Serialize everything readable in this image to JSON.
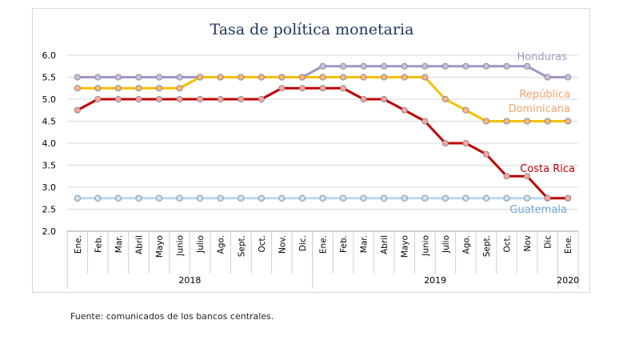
{
  "chart_data": {
    "type": "line",
    "title": "Tasa de política monetaria",
    "xlabel": "",
    "ylabel": "",
    "ylim": [
      2.0,
      6.0
    ],
    "yticks": [
      "6.0",
      "5.5",
      "5.0",
      "4.5",
      "4.0",
      "3.5",
      "3.0",
      "2.5",
      "2.0"
    ],
    "grid": true,
    "categories": [
      "Ene.",
      "Feb.",
      "Mar.",
      "Abril",
      "Mayo",
      "Junio",
      "Julio",
      "Ago.",
      "Sept.",
      "Oct.",
      "Nov.",
      "Dic.",
      "Ene.",
      "Feb.",
      "Mar.",
      "Abril",
      "Mayo",
      "Junio",
      "Julio",
      "Ago.",
      "Sept.",
      "Oct.",
      "Nov",
      "Dic",
      "Ene."
    ],
    "year_groups": [
      {
        "label": "2018",
        "start": 0,
        "count": 12
      },
      {
        "label": "2019",
        "start": 12,
        "count": 12
      },
      {
        "label": "2020",
        "start": 24,
        "count": 1
      }
    ],
    "series": [
      {
        "name": "Honduras",
        "label_lines": [
          "Honduras"
        ],
        "color": "#a593c6",
        "marker_fill": "#c9bedf",
        "values": [
          5.5,
          5.5,
          5.5,
          5.5,
          5.5,
          5.5,
          5.5,
          5.5,
          5.5,
          5.5,
          5.5,
          5.5,
          5.75,
          5.75,
          5.75,
          5.75,
          5.75,
          5.75,
          5.75,
          5.75,
          5.75,
          5.75,
          5.75,
          5.5,
          5.5
        ]
      },
      {
        "name": "República Dominicana",
        "label_lines": [
          "República",
          "Dominicana"
        ],
        "color": "#f5c000",
        "marker_fill": "#f7b58a",
        "label_color": "#f2a36b",
        "values": [
          5.25,
          5.25,
          5.25,
          5.25,
          5.25,
          5.25,
          5.5,
          5.5,
          5.5,
          5.5,
          5.5,
          5.5,
          5.5,
          5.5,
          5.5,
          5.5,
          5.5,
          5.5,
          5.0,
          4.75,
          4.5,
          4.5,
          4.5,
          4.5,
          4.5
        ]
      },
      {
        "name": "Costa Rica",
        "label_lines": [
          "Costa Rica"
        ],
        "color": "#c00000",
        "marker_fill": "#f4a5a5",
        "values": [
          4.75,
          5.0,
          5.0,
          5.0,
          5.0,
          5.0,
          5.0,
          5.0,
          5.0,
          5.0,
          5.25,
          5.25,
          5.25,
          5.25,
          5.0,
          5.0,
          4.75,
          4.5,
          4.0,
          4.0,
          3.75,
          3.25,
          3.25,
          2.75,
          2.75
        ]
      },
      {
        "name": "Guatemala",
        "label_lines": [
          "Guatemala"
        ],
        "color": "#bdd7ee",
        "marker_fill": "#cfe1f2",
        "label_color": "#6aa6d8",
        "values": [
          2.75,
          2.75,
          2.75,
          2.75,
          2.75,
          2.75,
          2.75,
          2.75,
          2.75,
          2.75,
          2.75,
          2.75,
          2.75,
          2.75,
          2.75,
          2.75,
          2.75,
          2.75,
          2.75,
          2.75,
          2.75,
          2.75,
          2.75,
          2.75,
          2.75
        ]
      }
    ]
  },
  "source_note": "Fuente: comunicados de los bancos centrales."
}
